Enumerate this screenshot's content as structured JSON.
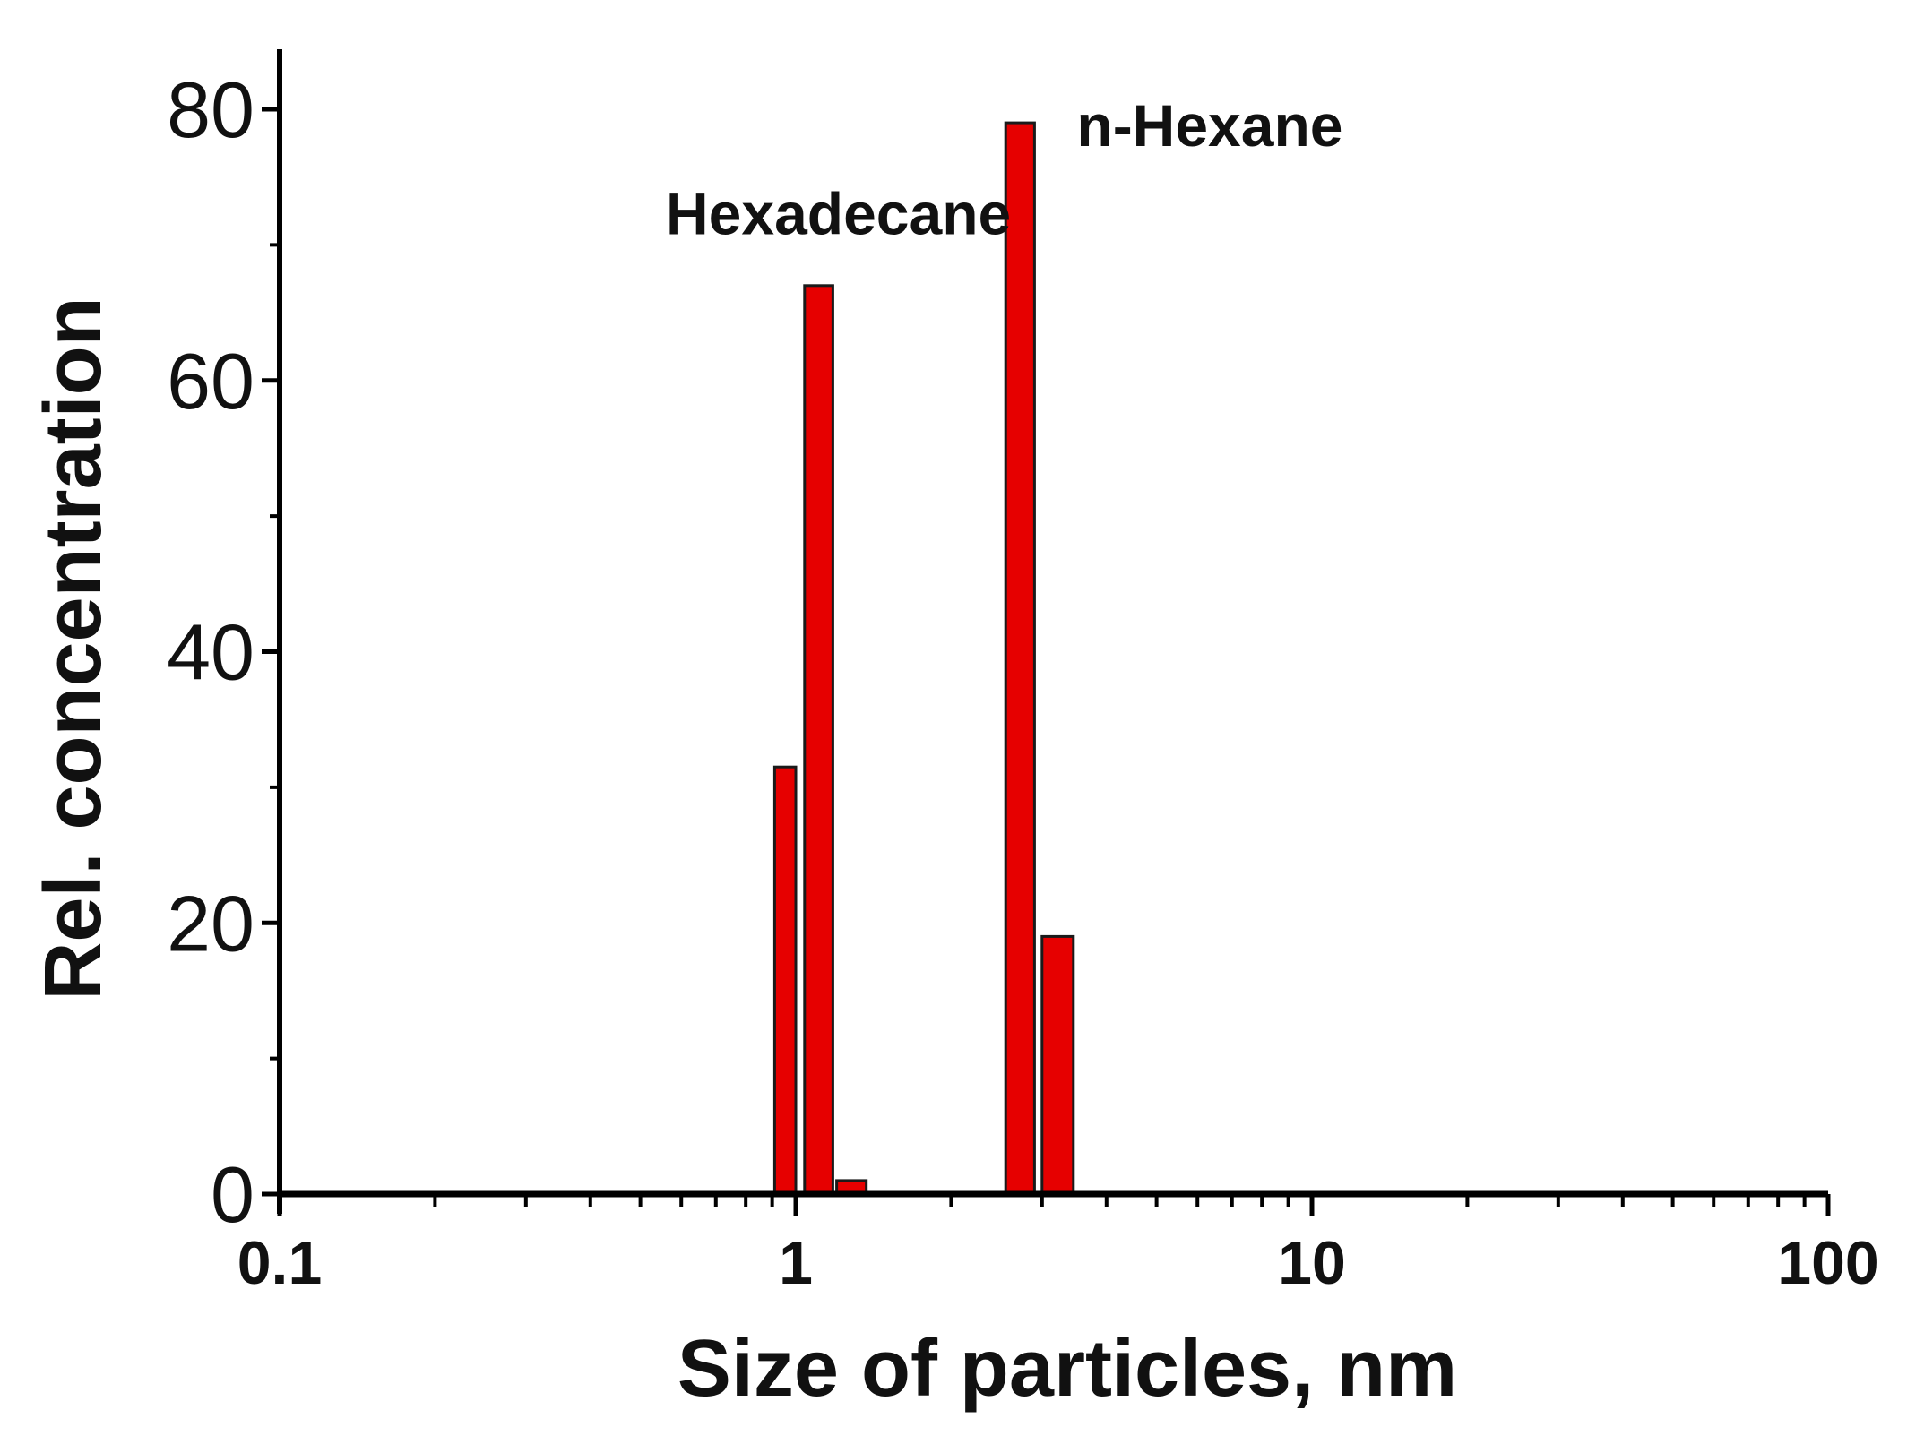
{
  "chart_data": {
    "type": "bar",
    "xlabel": "Size of particles, nm",
    "ylabel": "Rel. concentration",
    "x_scale": "log",
    "xlim": [
      0.1,
      100
    ],
    "ylim": [
      0,
      80
    ],
    "x_ticks": [
      {
        "value": 0.1,
        "label": "0.1"
      },
      {
        "value": 1,
        "label": "1"
      },
      {
        "value": 10,
        "label": "10"
      },
      {
        "value": 100,
        "label": "100"
      }
    ],
    "y_ticks": [
      {
        "value": 0,
        "label": "0"
      },
      {
        "value": 20,
        "label": "20"
      },
      {
        "value": 40,
        "label": "40"
      },
      {
        "value": 60,
        "label": "60"
      },
      {
        "value": 80,
        "label": "80"
      }
    ],
    "bar_color": "#e60000",
    "bars": [
      {
        "x_from": 0.91,
        "x_to": 1.0,
        "value": 31.5
      },
      {
        "x_from": 1.04,
        "x_to": 1.18,
        "value": 67
      },
      {
        "x_from": 1.2,
        "x_to": 1.37,
        "value": 1
      },
      {
        "x_from": 2.55,
        "x_to": 2.9,
        "value": 79
      },
      {
        "x_from": 3.0,
        "x_to": 3.45,
        "value": 19
      }
    ],
    "annotations": [
      {
        "text": "Hexadecane",
        "x": 0.56,
        "y": 70.8
      },
      {
        "text": "n-Hexane",
        "x": 3.5,
        "y": 77.3
      }
    ],
    "grid": false,
    "legend": "none"
  }
}
